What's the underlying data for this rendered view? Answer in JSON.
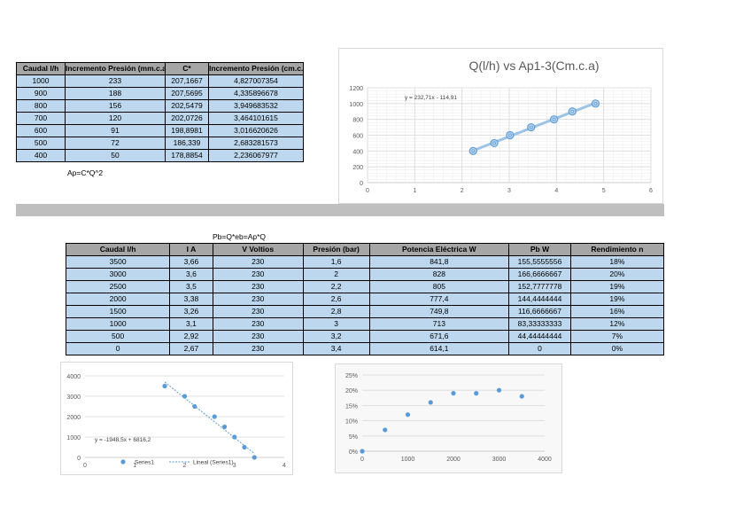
{
  "table1": {
    "headers": [
      "Caudal l/h",
      "Incremento Presión (mm.c.a)",
      "C*",
      "Incremento Presión (cm.c.a)"
    ],
    "rows": [
      [
        "1000",
        "233",
        "207,1667",
        "4,827007354"
      ],
      [
        "900",
        "188",
        "207,5695",
        "4,335896678"
      ],
      [
        "800",
        "156",
        "202,5479",
        "3,949683532"
      ],
      [
        "700",
        "120",
        "202,0726",
        "3,464101615"
      ],
      [
        "600",
        "91",
        "198,8981",
        "3,016620626"
      ],
      [
        "500",
        "72",
        "186,339",
        "2,683281573"
      ],
      [
        "400",
        "50",
        "178,8854",
        "2,236067977"
      ]
    ],
    "formula": "Ap=C*Q^2"
  },
  "table2": {
    "formula": "Pb=Q*eb=Ap*Q",
    "headers": [
      "Caudal l/h",
      "I A",
      "V Voltios",
      "Presión (bar)",
      "Potencia Eléctrica W",
      "Pb W",
      "Rendimiento n"
    ],
    "rows": [
      [
        "3500",
        "3,66",
        "230",
        "1,6",
        "841,8",
        "155,5555556",
        "18%"
      ],
      [
        "3000",
        "3,6",
        "230",
        "2",
        "828",
        "166,6666667",
        "20%"
      ],
      [
        "2500",
        "3,5",
        "230",
        "2,2",
        "805",
        "152,7777778",
        "19%"
      ],
      [
        "2000",
        "3,38",
        "230",
        "2,6",
        "777,4",
        "144,4444444",
        "19%"
      ],
      [
        "1500",
        "3,26",
        "230",
        "2,8",
        "749,8",
        "116,6666667",
        "16%"
      ],
      [
        "1000",
        "3,1",
        "230",
        "3",
        "713",
        "83,33333333",
        "12%"
      ],
      [
        "500",
        "2,92",
        "230",
        "3,2",
        "671,6",
        "44,44444444",
        "7%"
      ],
      [
        "0",
        "2,67",
        "230",
        "3,4",
        "614,1",
        "0",
        "0%"
      ]
    ]
  },
  "chart_data": [
    {
      "type": "scatter",
      "title": "Q(l/h) vs Ap1-3(Cm.c.a)",
      "x": [
        4.827007354,
        4.335896678,
        3.949683532,
        3.464101615,
        3.016620626,
        2.683281573,
        2.236067977
      ],
      "y": [
        1000,
        900,
        800,
        700,
        600,
        500,
        400
      ],
      "xlim": [
        0,
        6
      ],
      "ylim": [
        0,
        1200
      ],
      "xticks": [
        "0",
        "1",
        "2",
        "3",
        "4",
        "5",
        "6"
      ],
      "yticks": [
        "0",
        "200",
        "400",
        "600",
        "800",
        "1000",
        "1200"
      ],
      "trendline_label": "y = 232,71x - 114,91",
      "trendline": {
        "slope": 232.71,
        "intercept": -114.91
      },
      "grid": true,
      "color": "#5b9bd5"
    },
    {
      "type": "scatter",
      "x": [
        1.6,
        2,
        2.2,
        2.6,
        2.8,
        3,
        3.2,
        3.4
      ],
      "y": [
        3500,
        3000,
        2500,
        2000,
        1500,
        1000,
        500,
        0
      ],
      "xlim": [
        0,
        4
      ],
      "ylim": [
        0,
        4000
      ],
      "xticks": [
        "0",
        "1",
        "2",
        "3",
        "4"
      ],
      "yticks": [
        "0",
        "1000",
        "2000",
        "3000",
        "4000"
      ],
      "trendline_label": "y = -1948,5x + 6816,2",
      "trendline": {
        "slope": -1948.5,
        "intercept": 6816.2
      },
      "legend": [
        "Series1",
        "Lineal (Series1)"
      ],
      "legend_position": "bottom",
      "grid": true,
      "color": "#5b9bd5"
    },
    {
      "type": "scatter",
      "x": [
        3500,
        3000,
        2500,
        2000,
        1500,
        1000,
        500,
        0
      ],
      "y": [
        18,
        20,
        19,
        19,
        16,
        12,
        7,
        0
      ],
      "xlim": [
        0,
        4000
      ],
      "ylim": [
        0,
        25
      ],
      "xticks": [
        "0",
        "1000",
        "2000",
        "3000",
        "4000"
      ],
      "yticks": [
        "0%",
        "5%",
        "10%",
        "15%",
        "20%",
        "25%"
      ],
      "grid": true,
      "color": "#5b9bd5"
    }
  ]
}
